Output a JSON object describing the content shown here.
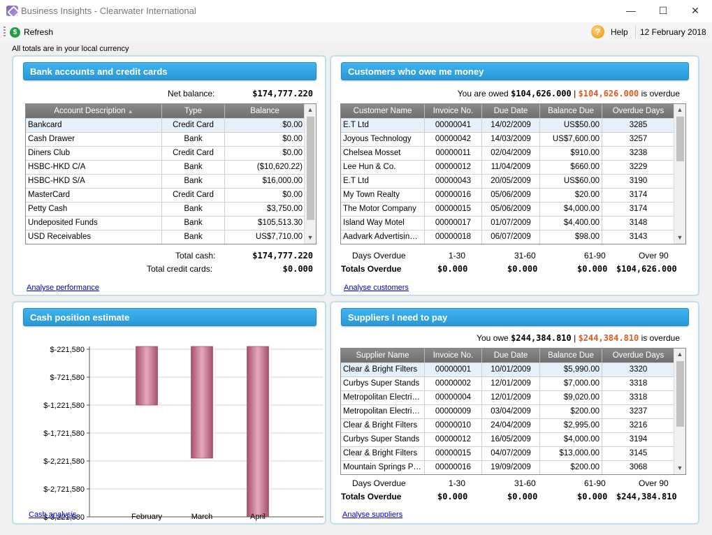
{
  "window": {
    "title": "Business Insights - Clearwater International",
    "minimize": "—",
    "maximize": "☐",
    "close": "✕"
  },
  "toolbar": {
    "refresh_label": "Refresh",
    "help_label": "Help",
    "date": "12 February 2018"
  },
  "note": "All totals are in your local currency",
  "bank": {
    "title": "Bank accounts and credit cards",
    "net_label": "Net balance:",
    "net_value": "$174,777.220",
    "columns": [
      "Account Description",
      "Type",
      "Balance"
    ],
    "rows": [
      [
        "Bankcard",
        "Credit Card",
        "$0.00"
      ],
      [
        "Cash Drawer",
        "Bank",
        "$0.00"
      ],
      [
        "Diners Club",
        "Credit Card",
        "$0.00"
      ],
      [
        "HSBC-HKD C/A",
        "Bank",
        "($10,620.22)"
      ],
      [
        "HSBC-HKD S/A",
        "Bank",
        "$16,000.00"
      ],
      [
        "MasterCard",
        "Credit Card",
        "$0.00"
      ],
      [
        "Petty Cash",
        "Bank",
        "$3,750.00"
      ],
      [
        "Undeposited Funds",
        "Bank",
        "$105,513.30"
      ],
      [
        "USD Receivables",
        "Bank",
        "US$7,710.00"
      ]
    ],
    "total_cash_label": "Total cash:",
    "total_cash": "$174,777.220",
    "total_cc_label": "Total credit cards:",
    "total_cc": "$0.000",
    "link": "Analyse performance"
  },
  "customers": {
    "title": "Customers who owe me money",
    "owed_prefix": "You are owed",
    "owed": "$104,626.000",
    "sep": "|",
    "overdue": "$104,626.000",
    "overdue_suffix": "is overdue",
    "columns": [
      "Customer Name",
      "Invoice No.",
      "Due Date",
      "Balance Due",
      "Overdue Days"
    ],
    "rows": [
      [
        "E.T Ltd",
        "00000041",
        "14/02/2009",
        "US$50.00",
        "3285"
      ],
      [
        "Joyous Technology",
        "00000042",
        "14/03/2009",
        "US$7,600.00",
        "3257"
      ],
      [
        "Chelsea Mosset",
        "00000011",
        "02/04/2009",
        "$910.00",
        "3238"
      ],
      [
        "Lee Hun & Co.",
        "00000012",
        "11/04/2009",
        "$660.00",
        "3229"
      ],
      [
        "E.T Ltd",
        "00000043",
        "20/05/2009",
        "US$60.00",
        "3190"
      ],
      [
        "My Town Realty",
        "00000016",
        "05/06/2009",
        "$20.00",
        "3174"
      ],
      [
        "The Motor Company",
        "00000015",
        "05/06/2009",
        "$4,000.00",
        "3174"
      ],
      [
        "Island Way Motel",
        "00000017",
        "01/07/2009",
        "$4,400.00",
        "3148"
      ],
      [
        "Aadvark Advertising (H)",
        "00000018",
        "06/07/2009",
        "$98.00",
        "3143"
      ]
    ],
    "aging_labels": [
      "Days Overdue",
      "1-30",
      "31-60",
      "61-90",
      "Over 90"
    ],
    "aging_totals": [
      "Totals Overdue",
      "$0.000",
      "$0.000",
      "$0.000",
      "$104,626.000"
    ],
    "link": "Analyse customers"
  },
  "cash": {
    "title": "Cash position estimate",
    "link": "Cash analysis",
    "chart_data": {
      "type": "bar",
      "categories": [
        "February",
        "March",
        "April"
      ],
      "values": [
        -1221580,
        -2171580,
        -3221580
      ],
      "ylim": [
        -3221580,
        -221580
      ],
      "yticks": [
        "$-221,580",
        "$-721,580",
        "$-1,221,580",
        "$-1,721,580",
        "$-2,221,580",
        "$-2,721,580",
        "$-3,221,580"
      ],
      "ytick_values": [
        -221580,
        -721580,
        -1221580,
        -1721580,
        -2221580,
        -2721580,
        -3221580
      ],
      "grid": true,
      "bar_color": "#c97a93"
    }
  },
  "suppliers": {
    "title": "Suppliers I need to pay",
    "owe_prefix": "You owe",
    "owe": "$244,384.810",
    "sep": "|",
    "overdue": "$244,384.810",
    "overdue_suffix": "is overdue",
    "columns": [
      "Supplier Name",
      "Invoice No.",
      "Due Date",
      "Balance Due",
      "Overdue Days"
    ],
    "rows": [
      [
        "Clear & Bright Filters",
        "00000001",
        "10/01/2009",
        "$5,990.00",
        "3320"
      ],
      [
        "Curbys Super Stands",
        "00000002",
        "12/01/2009",
        "$7,000.00",
        "3318"
      ],
      [
        "Metropolitan Electricity",
        "00000004",
        "12/01/2009",
        "$9,020.00",
        "3318"
      ],
      [
        "Metropolitan Electricity",
        "00000009",
        "03/04/2009",
        "$200.00",
        "3237"
      ],
      [
        "Clear & Bright Filters",
        "00000010",
        "24/04/2009",
        "$2,995.00",
        "3216"
      ],
      [
        "Curbys Super Stands",
        "00000012",
        "16/05/2009",
        "$4,000.00",
        "3194"
      ],
      [
        "Clear & Bright Filters",
        "00000015",
        "04/07/2009",
        "$13,000.00",
        "3145"
      ],
      [
        "Mountain Springs Pte...",
        "00000016",
        "19/09/2009",
        "$200.00",
        "3068"
      ]
    ],
    "aging_labels": [
      "Days Overdue",
      "1-30",
      "31-60",
      "61-90",
      "Over 90"
    ],
    "aging_totals": [
      "Totals Overdue",
      "$0.000",
      "$0.000",
      "$0.000",
      "$244,384.810"
    ],
    "link": "Analyse suppliers"
  }
}
